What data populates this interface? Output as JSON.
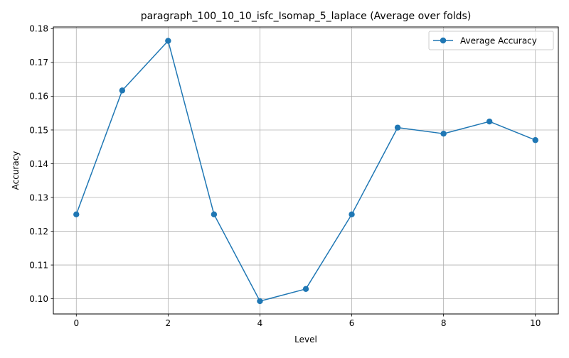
{
  "chart_data": {
    "type": "line",
    "title": "paragraph_100_10_10_isfc_Isomap_5_laplace (Average over folds)",
    "xlabel": "Level",
    "ylabel": "Accuracy",
    "xlim": [
      -0.5,
      10.5
    ],
    "ylim": [
      0.0955,
      0.1805
    ],
    "grid": true,
    "legend_position": "top-right",
    "x_ticks": [
      "0",
      "2",
      "4",
      "6",
      "8",
      "10"
    ],
    "y_ticks": [
      "0.10",
      "0.11",
      "0.12",
      "0.13",
      "0.14",
      "0.15",
      "0.16",
      "0.17",
      "0.18"
    ],
    "x": [
      0,
      1,
      2,
      3,
      4,
      5,
      6,
      7,
      8,
      9,
      10
    ],
    "series": [
      {
        "name": "Average Accuracy",
        "color": "#1f77b4",
        "marker": "circle",
        "values": [
          0.125,
          0.1617,
          0.1764,
          0.125,
          0.0993,
          0.1029,
          0.125,
          0.1507,
          0.1489,
          0.1525,
          0.147
        ]
      }
    ]
  }
}
